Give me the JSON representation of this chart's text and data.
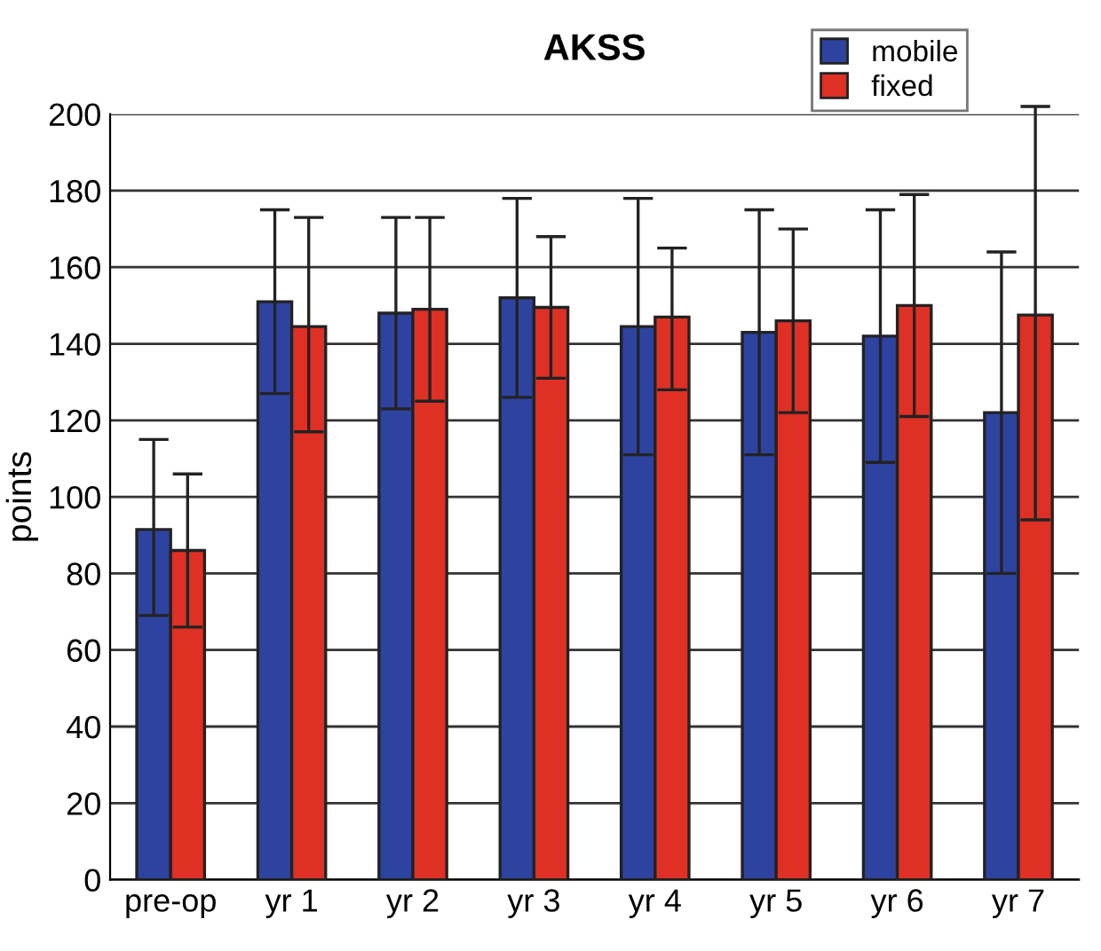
{
  "chart_data": {
    "type": "bar",
    "title": "AKSS",
    "ylabel": "points",
    "categories": [
      "pre-op",
      "yr 1",
      "yr 2",
      "yr 3",
      "yr 4",
      "yr 5",
      "yr 6",
      "yr 7"
    ],
    "series": [
      {
        "name": "mobile",
        "color": "#2e43a0",
        "values": [
          91.5,
          151,
          148,
          152,
          144.5,
          143,
          142,
          122
        ],
        "errors": [
          [
            69,
            115
          ],
          [
            127,
            175
          ],
          [
            123,
            173
          ],
          [
            126,
            178
          ],
          [
            111,
            178
          ],
          [
            111,
            175
          ],
          [
            109,
            175
          ],
          [
            80,
            164
          ]
        ]
      },
      {
        "name": "fixed",
        "color": "#de3024",
        "values": [
          86,
          144.5,
          149,
          149.5,
          147,
          146,
          150,
          147.5
        ],
        "errors": [
          [
            66,
            106
          ],
          [
            117,
            173
          ],
          [
            125,
            173
          ],
          [
            131,
            168
          ],
          [
            128,
            165
          ],
          [
            122,
            170
          ],
          [
            121,
            179
          ],
          [
            94,
            202
          ]
        ]
      }
    ],
    "ylim": [
      0,
      200
    ],
    "yticks": [
      0,
      20,
      40,
      60,
      80,
      100,
      120,
      140,
      160,
      180,
      200
    ],
    "grid": "y",
    "legend": "top right"
  }
}
